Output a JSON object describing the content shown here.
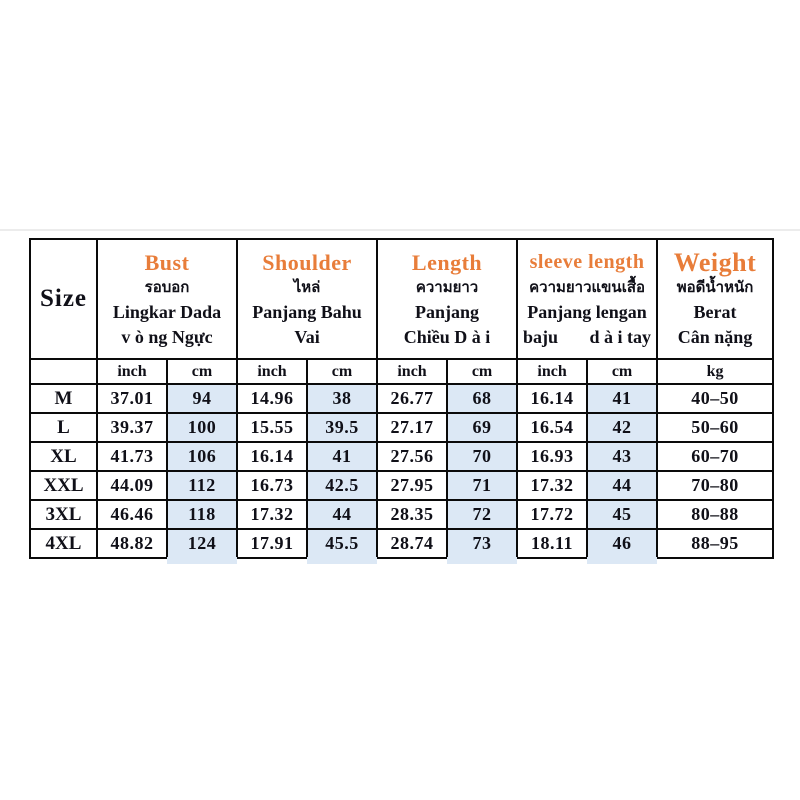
{
  "colors": {
    "accent_orange": "#e87d3a",
    "cell_blue": "#dce8f5",
    "border_black": "#0a0a0a",
    "text_dark": "#101018"
  },
  "table": {
    "size_header": "Size",
    "columns": [
      {
        "en": "Bust",
        "thai": "รอบอก",
        "indo": "Lingkar Dada",
        "viet": "v ò ng Ngực"
      },
      {
        "en": "Shoulder",
        "thai": "ไหล่",
        "indo": "Panjang Bahu",
        "viet": "Vai"
      },
      {
        "en": "Length",
        "thai": "ความยาว",
        "indo": "Panjang",
        "viet": "Chiều D à i"
      },
      {
        "en": "sleeve length",
        "thai": "ความยาวแขนเสื้อ",
        "indo": "Panjang lengan",
        "viet_left": "baju",
        "viet_right": "d à i tay"
      },
      {
        "en": "Weight",
        "thai": "พอดีน้ำหนัก",
        "indo": "Berat",
        "viet": "Cân nặng"
      }
    ],
    "units": [
      "inch",
      "cm",
      "inch",
      "cm",
      "inch",
      "cm",
      "inch",
      "cm",
      "kg"
    ],
    "rows": [
      {
        "size": "M",
        "values": [
          "37.01",
          "94",
          "14.96",
          "38",
          "26.77",
          "68",
          "16.14",
          "41",
          "40–50"
        ]
      },
      {
        "size": "L",
        "values": [
          "39.37",
          "100",
          "15.55",
          "39.5",
          "27.17",
          "69",
          "16.54",
          "42",
          "50–60"
        ]
      },
      {
        "size": "XL",
        "values": [
          "41.73",
          "106",
          "16.14",
          "41",
          "27.56",
          "70",
          "16.93",
          "43",
          "60–70"
        ]
      },
      {
        "size": "XXL",
        "values": [
          "44.09",
          "112",
          "16.73",
          "42.5",
          "27.95",
          "71",
          "17.32",
          "44",
          "70–80"
        ]
      },
      {
        "size": "3XL",
        "values": [
          "46.46",
          "118",
          "17.32",
          "44",
          "28.35",
          "72",
          "17.72",
          "45",
          "80–88"
        ]
      },
      {
        "size": "4XL",
        "values": [
          "48.82",
          "124",
          "17.91",
          "45.5",
          "28.74",
          "73",
          "18.11",
          "46",
          "88–95"
        ]
      }
    ]
  }
}
